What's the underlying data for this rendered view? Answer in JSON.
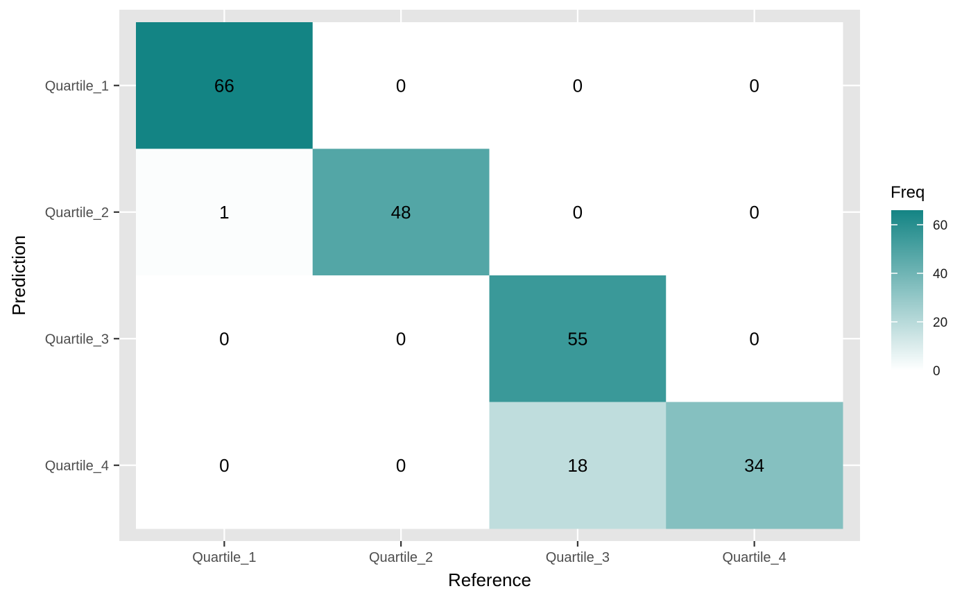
{
  "chart_data": {
    "type": "heatmap",
    "title": "",
    "xlabel": "Reference",
    "ylabel": "Prediction",
    "x_categories": [
      "Quartile_1",
      "Quartile_2",
      "Quartile_3",
      "Quartile_4"
    ],
    "y_categories": [
      "Quartile_1",
      "Quartile_2",
      "Quartile_3",
      "Quartile_4"
    ],
    "values": [
      [
        66,
        0,
        0,
        0
      ],
      [
        1,
        48,
        0,
        0
      ],
      [
        0,
        0,
        55,
        0
      ],
      [
        0,
        0,
        18,
        34
      ]
    ],
    "values_layout": "rows = Prediction, columns = Reference",
    "legend": {
      "title": "Freq",
      "ticks": [
        0,
        20,
        40,
        60
      ],
      "range": [
        0,
        66
      ],
      "position": "right"
    },
    "colors": {
      "low": "#ffffff",
      "high": "#138484",
      "panel_background": "#e5e5e5",
      "grid": "#ffffff"
    },
    "grid": true
  }
}
